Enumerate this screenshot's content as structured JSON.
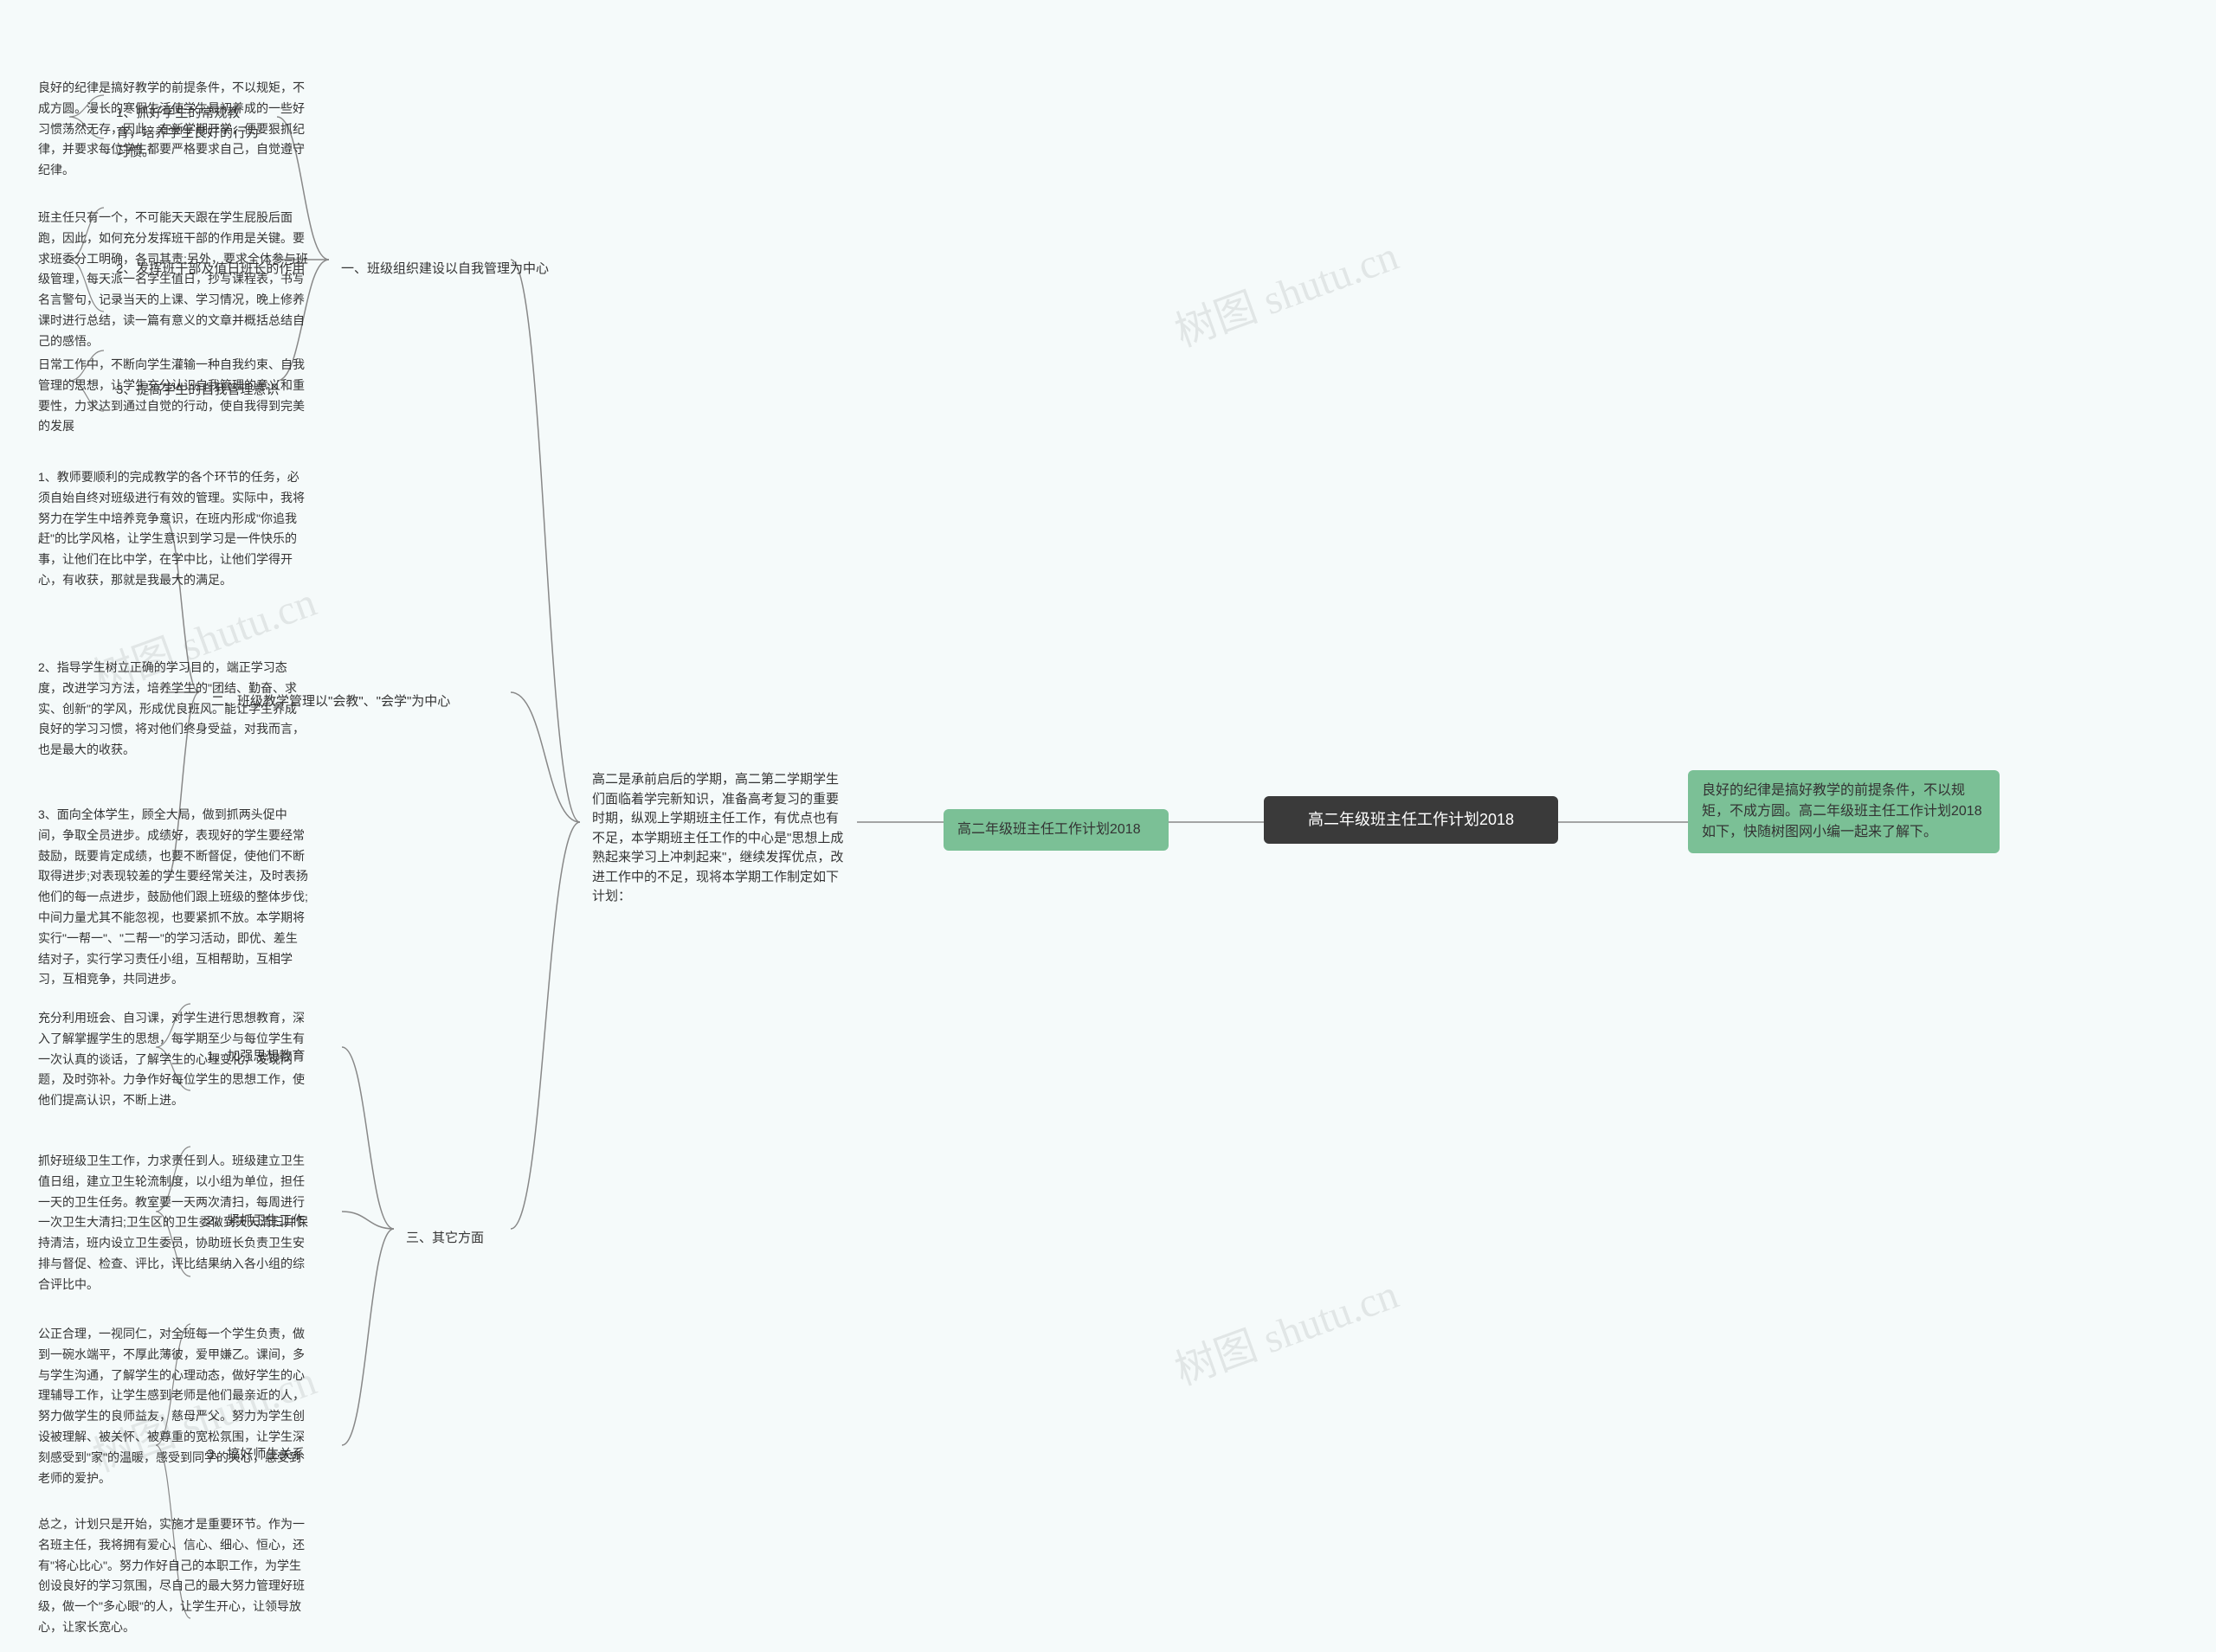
{
  "watermarks": {
    "wm1": "树图 shutu.cn",
    "wm2": "树图 shutu.cn",
    "wm3": "树图 shutu.cn",
    "wm4": "树图 shutu.cn"
  },
  "root": {
    "title": "高二年级班主任工作计划2018"
  },
  "right_green": {
    "text": "良好的纪律是搞好教学的前提条件，不以规矩，不成方圆。高二年级班主任工作计划2018如下，快随树图网小编一起来了解下。"
  },
  "left_green": {
    "text": "高二年级班主任工作计划2018"
  },
  "intro": {
    "text": "高二是承前启后的学期，高二第二学期学生们面临着学完新知识，准备高考复习的重要时期，纵观上学期班主任工作，有优点也有不足，本学期班主任工作的中心是\"思想上成熟起来学习上冲刺起来\"，继续发挥优点，改进工作中的不足，现将本学期工作制定如下计划："
  },
  "s1": {
    "title": "一、班级组织建设以自我管理为中心",
    "i1": {
      "title": "1、抓好学生的常规教育，培养学生良好的行为习惯。",
      "body": "良好的纪律是搞好教学的前提条件，不以规矩，不成方圆。漫长的寒假生活使学生最初养成的一些好习惯荡然无存，因此，在新学期开学，便要狠抓纪律，并要求每位学生都要严格要求自己，自觉遵守纪律。"
    },
    "i2": {
      "title": "2、发挥班干部及值日班长的作用",
      "body": "班主任只有一个，不可能天天跟在学生屁股后面跑，因此，如何充分发挥班干部的作用是关键。要求班委分工明确，各司其责;另外，要求全体参与班级管理，每天派一名学生值日，抄写课程表，书写名言警句，记录当天的上课、学习情况，晚上修养课时进行总结，读一篇有意义的文章并概括总结自己的感悟。"
    },
    "i3": {
      "title": "3、提高学生的自我管理意识",
      "body": "日常工作中，不断向学生灌输一种自我约束、自我管理的思想，让学生充分认识自我管理的意义和重要性，力求达到通过自觉的行动，使自我得到完美的发展"
    }
  },
  "s2": {
    "title": "二、班级教学管理以\"会教\"、\"会学\"为中心",
    "i1": {
      "body": "1、教师要顺利的完成教学的各个环节的任务，必须自始自终对班级进行有效的管理。实际中，我将努力在学生中培养竞争意识，在班内形成\"你追我赶\"的比学风格，让学生意识到学习是一件快乐的事，让他们在比中学，在学中比，让他们学得开心，有收获，那就是我最大的满足。"
    },
    "i2": {
      "body": "2、指导学生树立正确的学习目的，端正学习态度，改进学习方法，培养学生的\"团结、勤奋、求实、创新\"的学风，形成优良班风。能让学生养成良好的学习习惯，将对他们终身受益，对我而言，也是最大的收获。"
    },
    "i3": {
      "body": "3、面向全体学生，顾全大局，做到抓两头促中间，争取全员进步。成绩好，表现好的学生要经常鼓励，既要肯定成绩，也要不断督促，使他们不断取得进步;对表现较差的学生要经常关注，及时表扬他们的每一点进步，鼓励他们跟上班级的整体步伐;中间力量尤其不能忽视，也要紧抓不放。本学期将实行\"一帮一\"、\"二帮一\"的学习活动，即优、差生结对子，实行学习责任小组，互相帮助，互相学习，互相竞争，共同进步。"
    }
  },
  "s3": {
    "title": "三、其它方面",
    "i1": {
      "title": "1、加强思想教育",
      "body": "充分利用班会、自习课，对学生进行思想教育，深入了解掌握学生的思想，每学期至少与每位学生有一次认真的谈话，了解学生的心理变化，发现问题，及时弥补。力争作好每位学生的思想工作，使他们提高认识，不断上进。"
    },
    "i2": {
      "title": "2、紧抓卫生工作",
      "body": "抓好班级卫生工作，力求责任到人。班级建立卫生值日组，建立卫生轮流制度，以小组为单位，担任一天的卫生任务。教室要一天两次清扫，每周进行一次卫生大清扫;卫生区的卫生委做到天天清扫并保持清洁，班内设立卫生委员，协助班长负责卫生安排与督促、检查、评比，评比结果纳入各小组的综合评比中。"
    },
    "i3": {
      "title": "3、搞好师生关系",
      "body1": "公正合理，一视同仁，对全班每一个学生负责，做到一碗水端平，不厚此薄彼，爱甲嫌乙。课间，多与学生沟通，了解学生的心理动态，做好学生的心理辅导工作，让学生感到老师是他们最亲近的人，努力做学生的良师益友，慈母严父。努力为学生创设被理解、被关怀、被尊重的宽松氛围，让学生深刻感受到\"家\"的温暖，感受到同学的关心，感受到老师的爱护。",
      "body2": "总之，计划只是开始，实施才是重要环节。作为一名班主任，我将拥有爱心、信心、细心、恒心，还有\"将心比心\"。努力作好自己的本职工作，为学生创设良好的学习氛围，尽自己的最大努力管理好班级，做一个\"多心眼\"的人，让学生开心，让领导放心，让家长宽心。"
    }
  },
  "style": {
    "root_bg": "#3a3a3a",
    "root_color": "#ffffff",
    "green_bg": "#7bc096",
    "text_color": "#333333",
    "bg_color": "#f5fafa",
    "connector_color": "#888888",
    "font_family": "Microsoft YaHei",
    "root_fontsize": 18,
    "body_fontsize": 15,
    "leaf_fontsize": 14
  }
}
